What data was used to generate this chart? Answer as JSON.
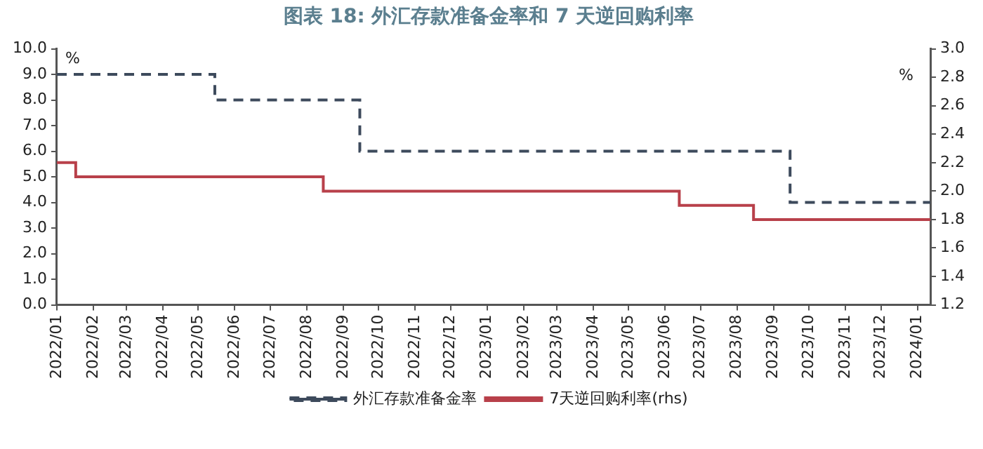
{
  "chart_data": {
    "type": "step",
    "title": "图表 18: 外汇存款准备金率和 7 天逆回购利率",
    "ylabel": "%",
    "y2label": "%",
    "xlim": [
      "2022-01-01",
      "2024-01-12"
    ],
    "xticks": [
      {
        "value": "2022-01-01",
        "label": "2022/01"
      },
      {
        "value": "2022-02-01",
        "label": "2022/02"
      },
      {
        "value": "2022-03-01",
        "label": "2022/03"
      },
      {
        "value": "2022-04-01",
        "label": "2022/04"
      },
      {
        "value": "2022-05-01",
        "label": "2022/05"
      },
      {
        "value": "2022-06-01",
        "label": "2022/06"
      },
      {
        "value": "2022-07-01",
        "label": "2022/07"
      },
      {
        "value": "2022-08-01",
        "label": "2022/08"
      },
      {
        "value": "2022-09-01",
        "label": "2022/09"
      },
      {
        "value": "2022-10-01",
        "label": "2022/10"
      },
      {
        "value": "2022-11-01",
        "label": "2022/11"
      },
      {
        "value": "2022-12-01",
        "label": "2022/12"
      },
      {
        "value": "2023-01-01",
        "label": "2023/01"
      },
      {
        "value": "2023-02-01",
        "label": "2023/02"
      },
      {
        "value": "2023-03-01",
        "label": "2023/03"
      },
      {
        "value": "2023-04-01",
        "label": "2023/04"
      },
      {
        "value": "2023-05-01",
        "label": "2023/05"
      },
      {
        "value": "2023-06-01",
        "label": "2023/06"
      },
      {
        "value": "2023-07-01",
        "label": "2023/07"
      },
      {
        "value": "2023-08-01",
        "label": "2023/08"
      },
      {
        "value": "2023-09-01",
        "label": "2023/09"
      },
      {
        "value": "2023-10-01",
        "label": "2023/10"
      },
      {
        "value": "2023-11-01",
        "label": "2023/11"
      },
      {
        "value": "2023-12-01",
        "label": "2023/12"
      },
      {
        "value": "2024-01-01",
        "label": "2024/01"
      }
    ],
    "ylim": [
      0,
      10
    ],
    "yticks": [
      {
        "value": 0,
        "label": "0.0"
      },
      {
        "value": 1,
        "label": "1.0"
      },
      {
        "value": 2,
        "label": "2.0"
      },
      {
        "value": 3,
        "label": "3.0"
      },
      {
        "value": 4,
        "label": "4.0"
      },
      {
        "value": 5,
        "label": "5.0"
      },
      {
        "value": 6,
        "label": "6.0"
      },
      {
        "value": 7,
        "label": "7.0"
      },
      {
        "value": 8,
        "label": "8.0"
      },
      {
        "value": 9,
        "label": "9.0"
      },
      {
        "value": 10,
        "label": "10.0"
      }
    ],
    "y2lim": [
      1.2,
      3.0
    ],
    "y2ticks": [
      {
        "value": 1.2,
        "label": "1.2"
      },
      {
        "value": 1.4,
        "label": "1.4"
      },
      {
        "value": 1.6,
        "label": "1.6"
      },
      {
        "value": 1.8,
        "label": "1.8"
      },
      {
        "value": 2.0,
        "label": "2.0"
      },
      {
        "value": 2.2,
        "label": "2.2"
      },
      {
        "value": 2.4,
        "label": "2.4"
      },
      {
        "value": 2.6,
        "label": "2.6"
      },
      {
        "value": 2.8,
        "label": "2.8"
      },
      {
        "value": 3.0,
        "label": "3.0"
      }
    ],
    "grid": false,
    "legend": "bottom",
    "series": [
      {
        "name": "外汇存款准备金率",
        "color": "#3d4a5c",
        "line_style": "dashed",
        "x": [
          "2022-01-01",
          "2022-05-15",
          "2022-09-15",
          "2023-09-15",
          "2024-01-12"
        ],
        "values": [
          9,
          8,
          6,
          4,
          4
        ]
      },
      {
        "name": "7天逆回购利率(rhs)",
        "color": "#b8404a",
        "line_style": "solid",
        "axis": "y2",
        "x": [
          "2022-01-01",
          "2022-01-17",
          "2022-08-15",
          "2023-06-13",
          "2023-08-15",
          "2024-01-12"
        ],
        "values": [
          2.2,
          2.1,
          2.0,
          1.9,
          1.8,
          1.8
        ]
      }
    ]
  }
}
